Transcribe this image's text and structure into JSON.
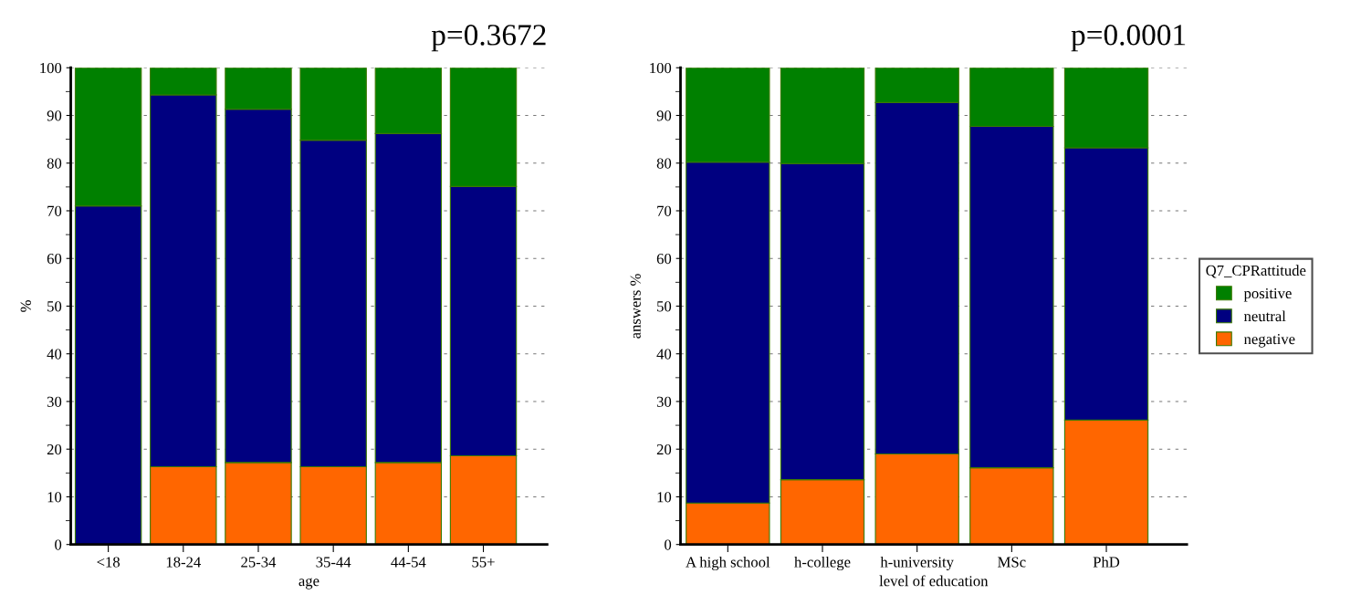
{
  "chart_data": [
    {
      "type": "bar",
      "stacked": true,
      "title": "p=0.3672",
      "xlabel": "age",
      "ylabel": "%",
      "categories": [
        "<18",
        "18-24",
        "25-34",
        "35-44",
        "44-54",
        "55+"
      ],
      "ylim": [
        0,
        100
      ],
      "yticks": [
        0,
        10,
        20,
        30,
        40,
        50,
        60,
        70,
        80,
        90,
        100
      ],
      "grid": "y",
      "legend": false,
      "series": [
        {
          "color": "#ff6600",
          "values": [
            0,
            16.3,
            17.2,
            16.3,
            17.2,
            18.6
          ]
        },
        {
          "color": "#000080",
          "values": [
            71,
            78.0,
            74.1,
            68.5,
            69.0,
            56.5
          ]
        },
        {
          "color": "#008000",
          "values": [
            29,
            5.7,
            8.7,
            15.2,
            13.8,
            24.9
          ]
        }
      ]
    },
    {
      "type": "bar",
      "stacked": true,
      "title": "p=0.0001",
      "xlabel": "level of education",
      "ylabel": "answers %",
      "legend_title": "Q7_CPRattitude",
      "categories": [
        "A high school",
        "h-college",
        "h-university",
        "MSc",
        "PhD"
      ],
      "ylim": [
        0,
        100
      ],
      "yticks": [
        0,
        10,
        20,
        30,
        40,
        50,
        60,
        70,
        80,
        90,
        100
      ],
      "grid": "y",
      "legend": "right",
      "series": [
        {
          "name": "negative",
          "color": "#ff6600",
          "values": [
            8.7,
            13.6,
            19.0,
            16.1,
            26.1
          ]
        },
        {
          "name": "neutral",
          "color": "#000080",
          "values": [
            71.5,
            66.3,
            73.7,
            71.6,
            57.1
          ]
        },
        {
          "name": "positive",
          "color": "#008000",
          "values": [
            19.8,
            20.1,
            7.3,
            12.3,
            16.8
          ]
        }
      ]
    }
  ]
}
